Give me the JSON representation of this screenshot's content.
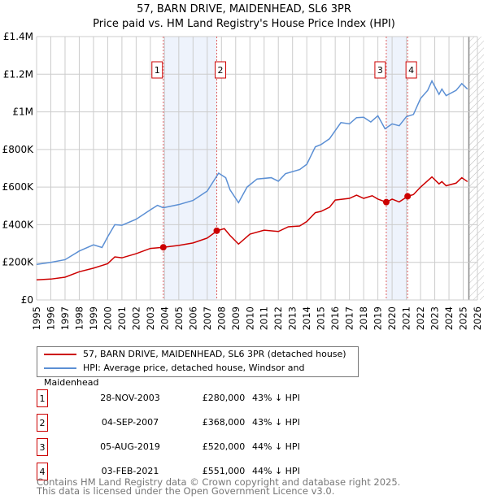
{
  "chart_data": {
    "type": "line",
    "title": "57, BARN DRIVE, MAIDENHEAD, SL6 3PR",
    "subtitle": "Price paid vs. HM Land Registry's House Price Index (HPI)",
    "xlim": [
      1995,
      2026
    ],
    "ylim": [
      0,
      1400000
    ],
    "x_ticks": [
      "1995",
      "1996",
      "1997",
      "1998",
      "1999",
      "2000",
      "2001",
      "2002",
      "2003",
      "2004",
      "2005",
      "2006",
      "2007",
      "2008",
      "2009",
      "2010",
      "2011",
      "2012",
      "2013",
      "2014",
      "2015",
      "2016",
      "2017",
      "2018",
      "2019",
      "2020",
      "2021",
      "2022",
      "2023",
      "2024",
      "2025",
      "2026"
    ],
    "y_ticks": [
      {
        "v": 0,
        "label": "£0"
      },
      {
        "v": 200000,
        "label": "£200K"
      },
      {
        "v": 400000,
        "label": "£400K"
      },
      {
        "v": 600000,
        "label": "£600K"
      },
      {
        "v": 800000,
        "label": "£800K"
      },
      {
        "v": 1000000,
        "label": "£1M"
      },
      {
        "v": 1200000,
        "label": "£1.2M"
      },
      {
        "v": 1400000,
        "label": "£1.4M"
      }
    ],
    "grid": true,
    "series": [
      {
        "name": "57, BARN DRIVE, MAIDENHEAD, SL6 3PR (detached house)",
        "color": "#cc0000",
        "x": [
          1995,
          1996,
          1997,
          1998,
          1999,
          2000,
          2000.5,
          2001,
          2002,
          2003,
          2003.9,
          2005,
          2006,
          2007,
          2007.7,
          2008.2,
          2008.6,
          2009.2,
          2010,
          2011,
          2012,
          2012.7,
          2013.5,
          2014,
          2014.6,
          2015,
          2015.6,
          2016,
          2017,
          2017.5,
          2018,
          2018.6,
          2019,
          2019.6,
          2020,
          2020.5,
          2021.1,
          2021.5,
          2022,
          2022.8,
          2023.3,
          2023.5,
          2023.8,
          2024.5,
          2024.9,
          2025.3
        ],
        "y": [
          107000,
          111000,
          121000,
          150000,
          169000,
          193000,
          229000,
          224000,
          246000,
          274000,
          280000,
          290000,
          303000,
          329000,
          368000,
          379000,
          343000,
          297000,
          350000,
          371000,
          364000,
          389000,
          393000,
          417000,
          464000,
          471000,
          493000,
          531000,
          540000,
          557000,
          540000,
          554000,
          536000,
          520000,
          536000,
          521000,
          551000,
          560000,
          600000,
          654000,
          617000,
          629000,
          607000,
          621000,
          650000,
          629000
        ]
      },
      {
        "name": "HPI: Average price, detached house, Windsor and Maidenhead",
        "color": "#5b8fd4",
        "x": [
          1995,
          1996,
          1997,
          1998,
          1999,
          1999.6,
          2000,
          2000.5,
          2001,
          2002,
          2003,
          2003.5,
          2003.9,
          2005,
          2006,
          2007,
          2007.8,
          2008.3,
          2008.6,
          2009.2,
          2009.8,
          2010.5,
          2011.5,
          2012,
          2012.5,
          2013.5,
          2014,
          2014.6,
          2015,
          2015.6,
          2016,
          2016.4,
          2017,
          2017.5,
          2018,
          2018.5,
          2019,
          2019.5,
          2020,
          2020.5,
          2021,
          2021.5,
          2022,
          2022.5,
          2022.8,
          2023.3,
          2023.5,
          2023.8,
          2024.5,
          2024.9,
          2025.3
        ],
        "y": [
          189000,
          200000,
          214000,
          260000,
          293000,
          279000,
          336000,
          400000,
          397000,
          429000,
          479000,
          503000,
          490000,
          507000,
          529000,
          579000,
          674000,
          650000,
          586000,
          517000,
          600000,
          643000,
          650000,
          631000,
          671000,
          693000,
          721000,
          814000,
          826000,
          857000,
          900000,
          943000,
          936000,
          969000,
          971000,
          946000,
          979000,
          910000,
          936000,
          926000,
          974000,
          986000,
          1071000,
          1114000,
          1164000,
          1093000,
          1121000,
          1086000,
          1114000,
          1150000,
          1121000
        ]
      }
    ],
    "sales": [
      {
        "n": "1",
        "x": 2003.91,
        "y": 280000,
        "date": "28-NOV-2003",
        "price": "£280,000",
        "hpi": "43% ↓ HPI"
      },
      {
        "n": "2",
        "x": 2007.67,
        "y": 368000,
        "date": "04-SEP-2007",
        "price": "£368,000",
        "hpi": "43% ↓ HPI"
      },
      {
        "n": "3",
        "x": 2019.59,
        "y": 520000,
        "date": "05-AUG-2019",
        "price": "£520,000",
        "hpi": "44% ↓ HPI"
      },
      {
        "n": "4",
        "x": 2021.09,
        "y": 551000,
        "date": "03-FEB-2021",
        "price": "£551,000",
        "hpi": "44% ↓ HPI"
      }
    ],
    "shaded": [
      [
        2003.91,
        2007.67
      ],
      [
        2019.59,
        2021.09
      ]
    ],
    "hatched_from": 2025.4,
    "legend": [
      "57, BARN DRIVE, MAIDENHEAD, SL6 3PR (detached house)",
      "HPI: Average price, detached house, Windsor and Maidenhead"
    ],
    "legend_position": "bottom"
  },
  "footer": {
    "line1": "Contains HM Land Registry data © Crown copyright and database right 2025.",
    "line2": "This data is licensed under the Open Government Licence v3.0."
  }
}
